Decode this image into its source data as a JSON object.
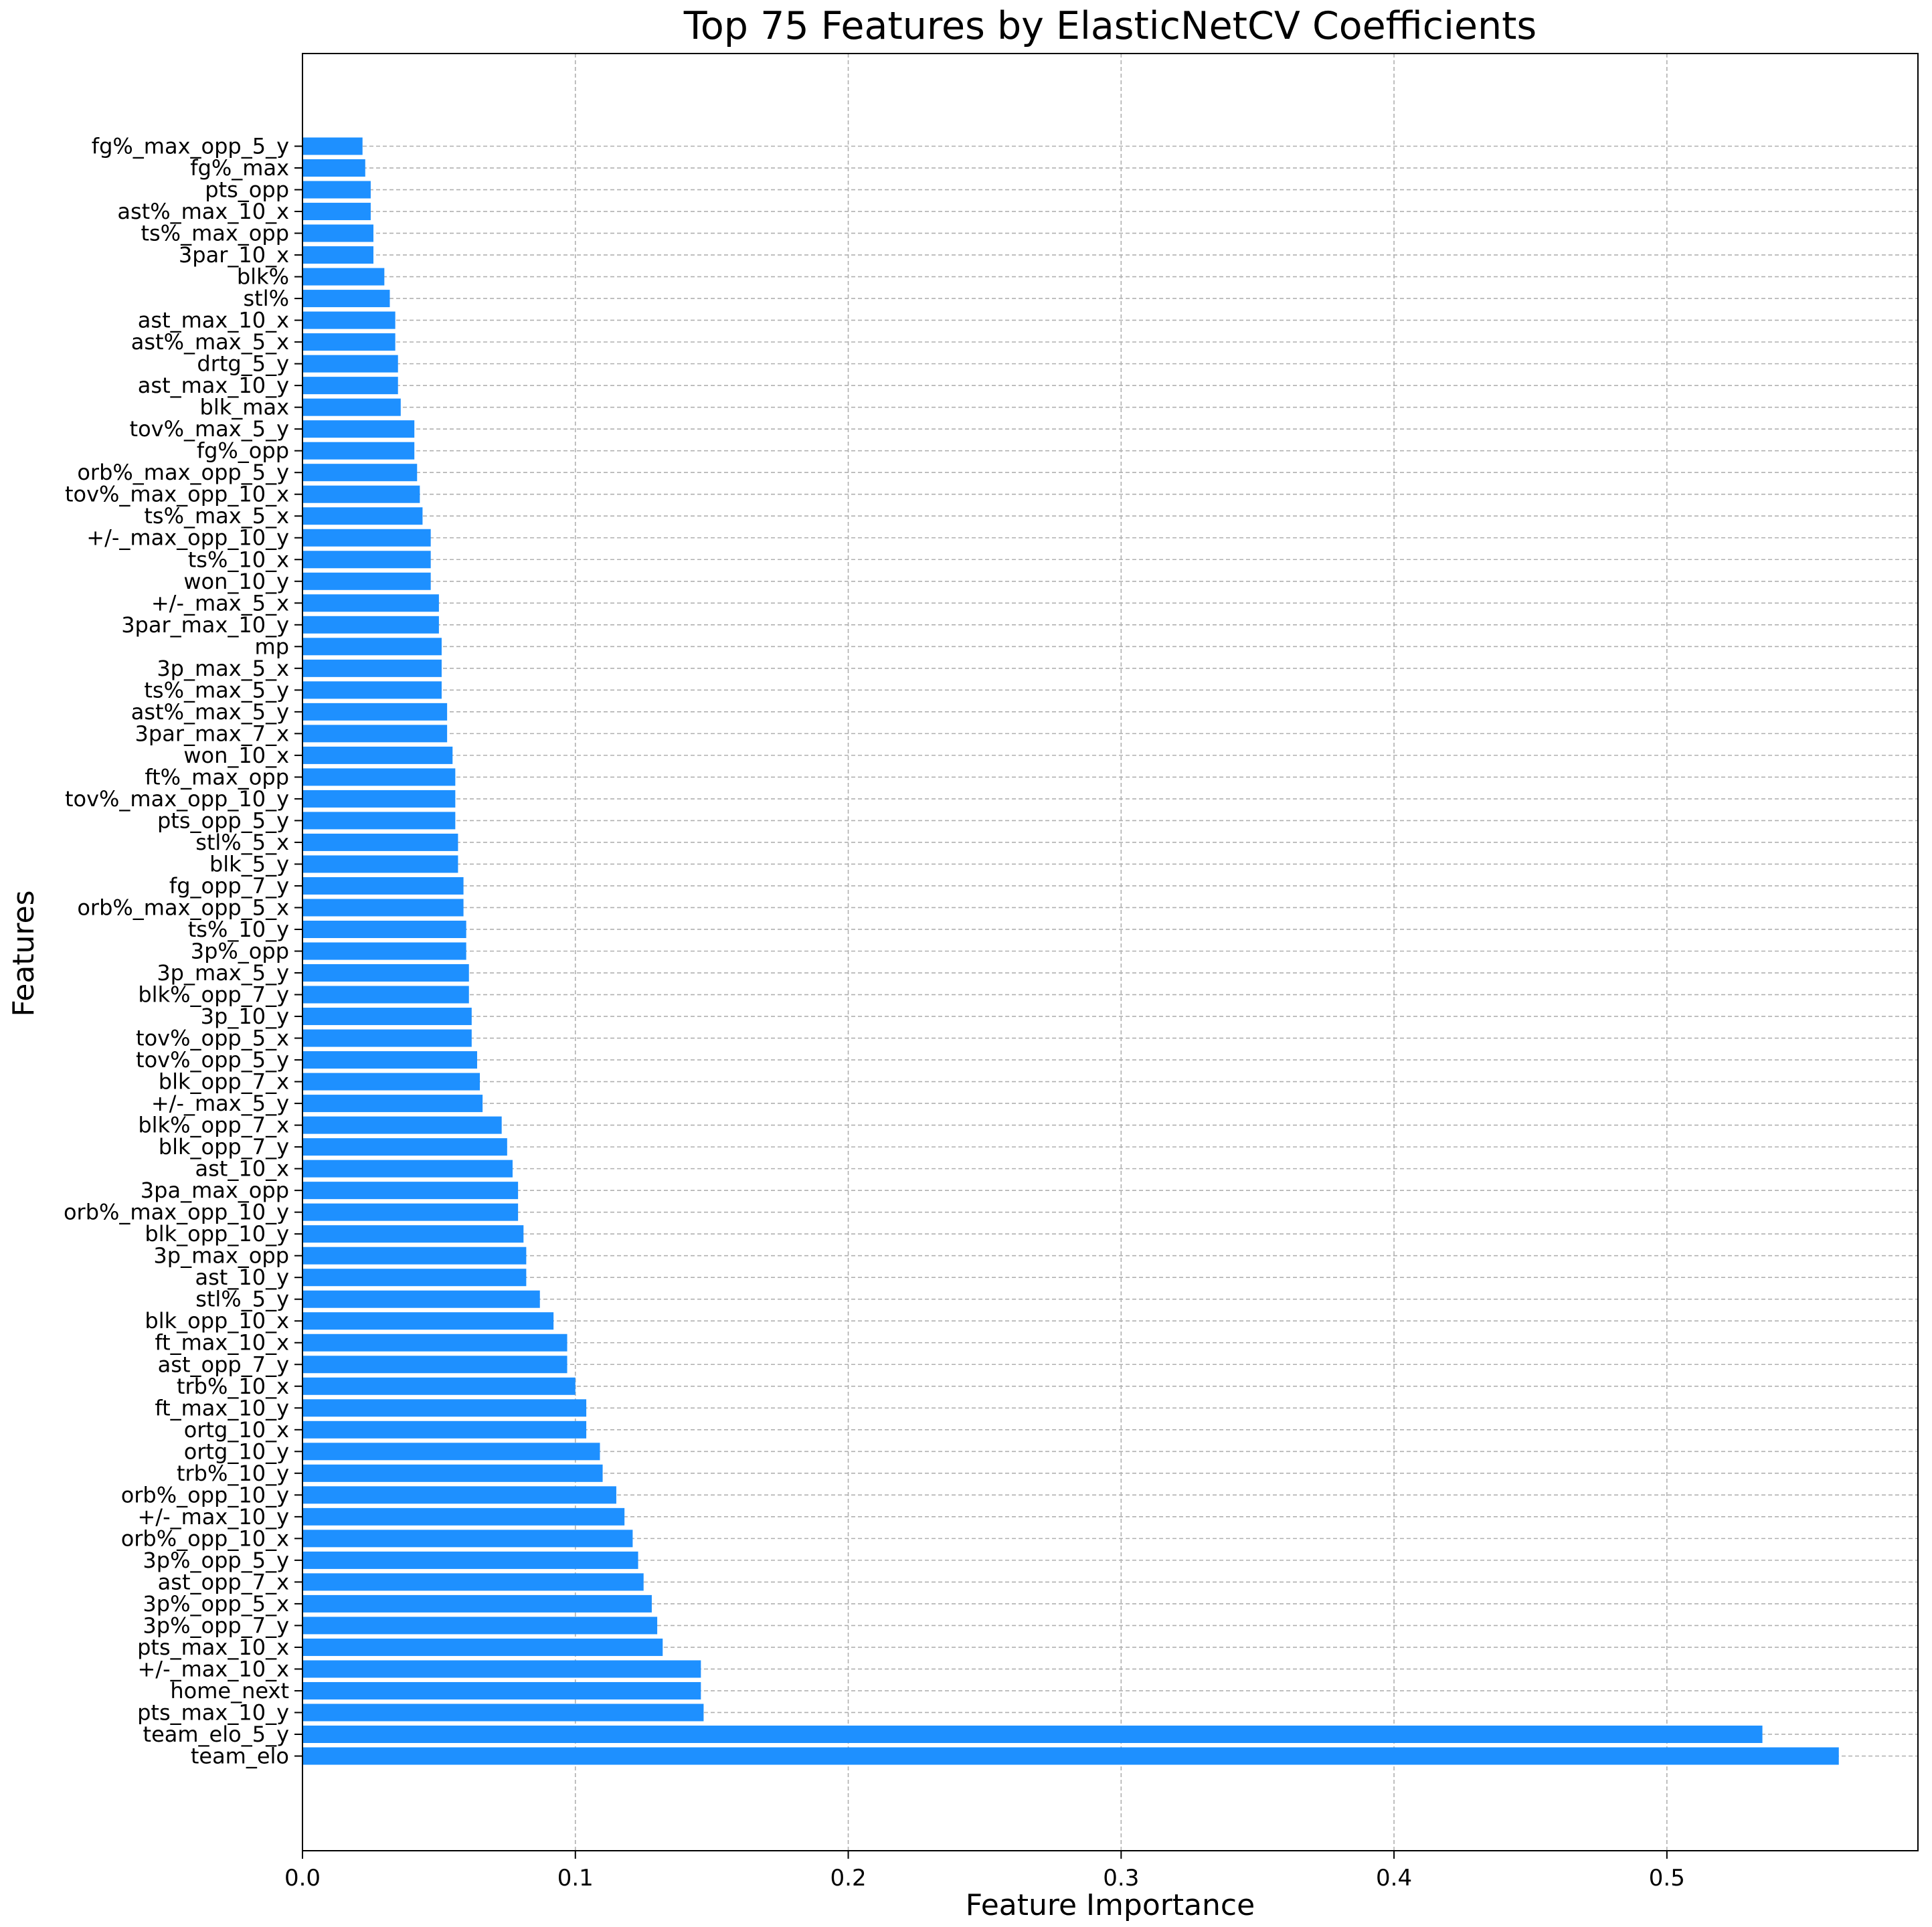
{
  "chart_data": {
    "type": "bar",
    "orientation": "horizontal",
    "title": "Top 75 Features by ElasticNetCV Coefficients",
    "xlabel": "Feature Importance",
    "ylabel": "Features",
    "xlim": [
      0,
      0.592
    ],
    "xticks": [
      0.0,
      0.1,
      0.2,
      0.3,
      0.4,
      0.5
    ],
    "xtick_labels": [
      "0.0",
      "0.1",
      "0.2",
      "0.3",
      "0.4",
      "0.5"
    ],
    "grid": true,
    "bar_color": "#1e90ff",
    "categories": [
      "team_elo",
      "team_elo_5_y",
      "pts_max_10_y",
      "home_next",
      "+/-_max_10_x",
      "pts_max_10_x",
      "3p%_opp_7_y",
      "3p%_opp_5_x",
      "ast_opp_7_x",
      "3p%_opp_5_y",
      "orb%_opp_10_x",
      "+/-_max_10_y",
      "orb%_opp_10_y",
      "trb%_10_y",
      "ortg_10_y",
      "ortg_10_x",
      "ft_max_10_y",
      "trb%_10_x",
      "ast_opp_7_y",
      "ft_max_10_x",
      "blk_opp_10_x",
      "stl%_5_y",
      "ast_10_y",
      "3p_max_opp",
      "blk_opp_10_y",
      "orb%_max_opp_10_y",
      "3pa_max_opp",
      "ast_10_x",
      "blk_opp_7_y",
      "blk%_opp_7_x",
      "+/-_max_5_y",
      "blk_opp_7_x",
      "tov%_opp_5_y",
      "tov%_opp_5_x",
      "3p_10_y",
      "blk%_opp_7_y",
      "3p_max_5_y",
      "3p%_opp",
      "ts%_10_y",
      "orb%_max_opp_5_x",
      "fg_opp_7_y",
      "blk_5_y",
      "stl%_5_x",
      "pts_opp_5_y",
      "tov%_max_opp_10_y",
      "ft%_max_opp",
      "won_10_x",
      "3par_max_7_x",
      "ast%_max_5_y",
      "ts%_max_5_y",
      "3p_max_5_x",
      "mp",
      "3par_max_10_y",
      "+/-_max_5_x",
      "won_10_y",
      "ts%_10_x",
      "+/-_max_opp_10_y",
      "ts%_max_5_x",
      "tov%_max_opp_10_x",
      "orb%_max_opp_5_y",
      "fg%_opp",
      "tov%_max_5_y",
      "blk_max",
      "ast_max_10_y",
      "drtg_5_y",
      "ast%_max_5_x",
      "ast_max_10_x",
      "stl%",
      "blk%",
      "3par_10_x",
      "ts%_max_opp",
      "ast%_max_10_x",
      "pts_opp",
      "fg%_max",
      "fg%_max_opp_5_y"
    ],
    "values": [
      0.563,
      0.535,
      0.147,
      0.146,
      0.146,
      0.132,
      0.13,
      0.128,
      0.125,
      0.123,
      0.121,
      0.118,
      0.115,
      0.11,
      0.109,
      0.104,
      0.104,
      0.1,
      0.097,
      0.097,
      0.092,
      0.087,
      0.082,
      0.082,
      0.081,
      0.079,
      0.079,
      0.077,
      0.075,
      0.073,
      0.066,
      0.065,
      0.064,
      0.062,
      0.062,
      0.061,
      0.061,
      0.06,
      0.06,
      0.059,
      0.059,
      0.057,
      0.057,
      0.056,
      0.056,
      0.056,
      0.055,
      0.053,
      0.053,
      0.051,
      0.051,
      0.051,
      0.05,
      0.05,
      0.047,
      0.047,
      0.047,
      0.044,
      0.043,
      0.042,
      0.041,
      0.041,
      0.036,
      0.035,
      0.035,
      0.034,
      0.034,
      0.032,
      0.03,
      0.026,
      0.026,
      0.025,
      0.025,
      0.023,
      0.022
    ]
  }
}
